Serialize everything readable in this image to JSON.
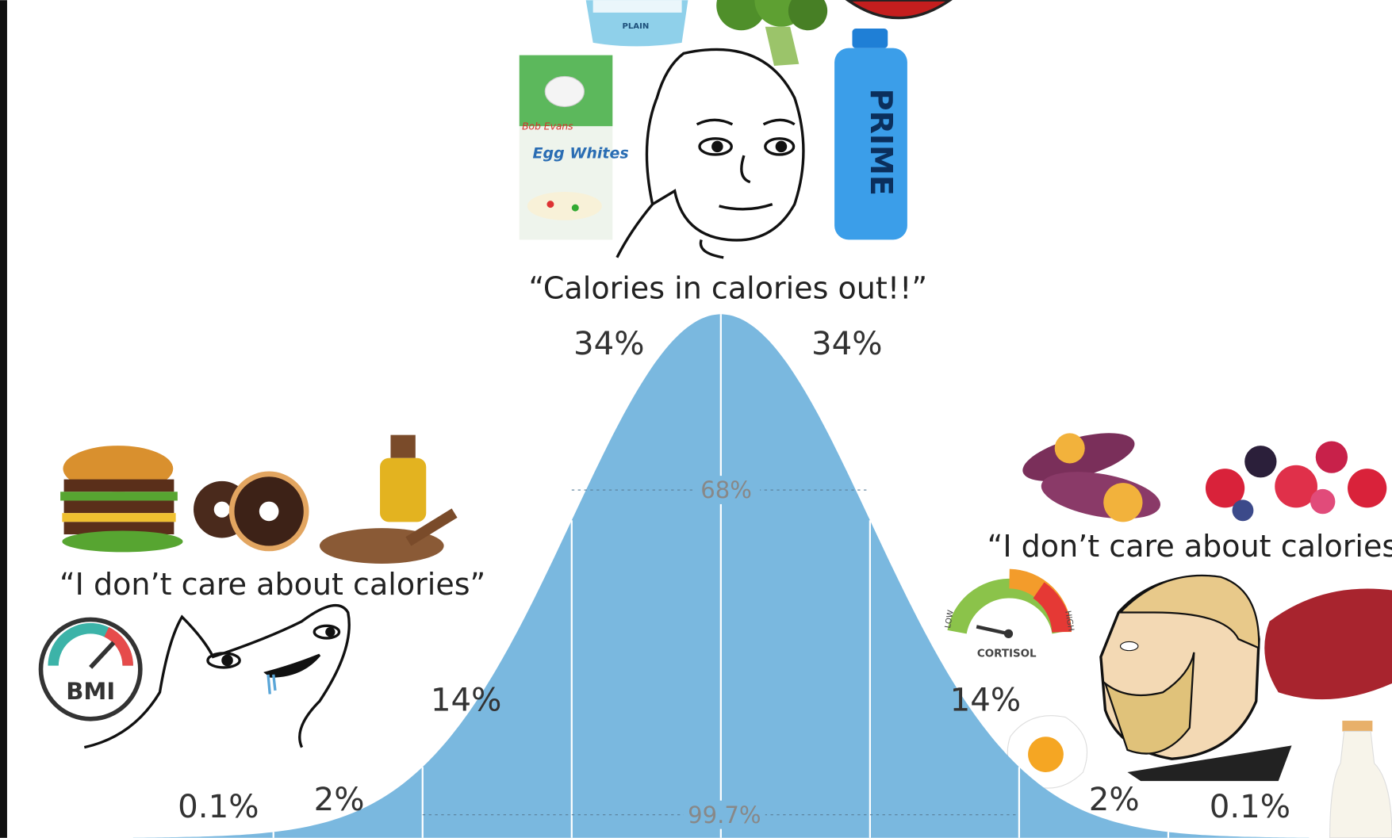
{
  "center": {
    "quote": "“Calories in calories out!!”",
    "items": {
      "yogurt": "PLAIN",
      "egg_brand": "Bob Evans",
      "egg_product": "Egg Whites",
      "drink": "PRIME"
    }
  },
  "left": {
    "quote": "“I don’t care about calories”",
    "gauge": "BMI"
  },
  "right": {
    "quote": "“I don’t care about calories”",
    "gauge": "CORTISOL",
    "gauge_low": "LOW",
    "gauge_high": "HIGH"
  },
  "curve": {
    "segments": [
      "0.1%",
      "2%",
      "14%",
      "34%",
      "34%",
      "14%",
      "2%",
      "0.1%"
    ],
    "inner_range": "68%",
    "outer_range": "99.7%"
  }
}
